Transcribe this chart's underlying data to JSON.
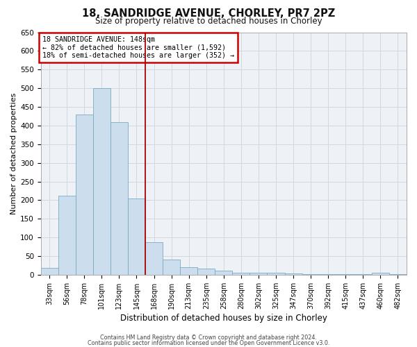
{
  "title": "18, SANDRIDGE AVENUE, CHORLEY, PR7 2PZ",
  "subtitle": "Size of property relative to detached houses in Chorley",
  "xlabel": "Distribution of detached houses by size in Chorley",
  "ylabel": "Number of detached properties",
  "footnote1": "Contains HM Land Registry data © Crown copyright and database right 2024.",
  "footnote2": "Contains public sector information licensed under the Open Government Licence v3.0.",
  "bin_labels": [
    "33sqm",
    "56sqm",
    "78sqm",
    "101sqm",
    "123sqm",
    "145sqm",
    "168sqm",
    "190sqm",
    "213sqm",
    "235sqm",
    "258sqm",
    "280sqm",
    "302sqm",
    "325sqm",
    "347sqm",
    "370sqm",
    "392sqm",
    "415sqm",
    "437sqm",
    "460sqm",
    "482sqm"
  ],
  "bar_heights": [
    18,
    212,
    430,
    500,
    410,
    205,
    87,
    40,
    20,
    17,
    12,
    6,
    5,
    5,
    4,
    2,
    1,
    1,
    1,
    5,
    1
  ],
  "bar_color": "#ccdded",
  "bar_edgecolor": "#7aabbf",
  "grid_color": "#d0d8e0",
  "vline_x_index": 5,
  "vline_color": "#aa0000",
  "annotation_text": "18 SANDRIDGE AVENUE: 148sqm\n← 82% of detached houses are smaller (1,592)\n18% of semi-detached houses are larger (352) →",
  "annotation_box_color": "#cc0000",
  "ylim": [
    0,
    650
  ],
  "yticks": [
    0,
    50,
    100,
    150,
    200,
    250,
    300,
    350,
    400,
    450,
    500,
    550,
    600,
    650
  ],
  "background_color": "#eef2f7",
  "fig_width": 6.0,
  "fig_height": 5.0,
  "dpi": 100
}
